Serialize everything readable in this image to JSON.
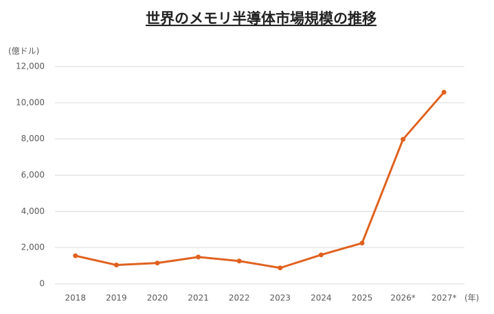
{
  "chart_data": {
    "type": "line",
    "title": "世界のメモリ半導体市場規模の推移",
    "y_label": "(億ドル)",
    "x_label": "(年)",
    "categories": [
      "2018",
      "2019",
      "2020",
      "2021",
      "2022",
      "2023",
      "2024",
      "2025",
      "2026*",
      "2027*"
    ],
    "values": [
      1550,
      1040,
      1150,
      1480,
      1260,
      880,
      1600,
      2250,
      7980,
      10580
    ],
    "color": "#e0611f",
    "ylim": [
      0,
      12000
    ],
    "yticks": [
      0,
      {
        "value": 2000,
        "label": "2,000"
      },
      {
        "value": 4000,
        "label": "4,000"
      },
      {
        "value": 6000,
        "label": "6,000"
      },
      {
        "value": 8000,
        "label": "8,000"
      },
      {
        "value": 10000,
        "label": "10,000"
      },
      {
        "value": 12000,
        "label": "12,000"
      }
    ],
    "grid": true
  }
}
